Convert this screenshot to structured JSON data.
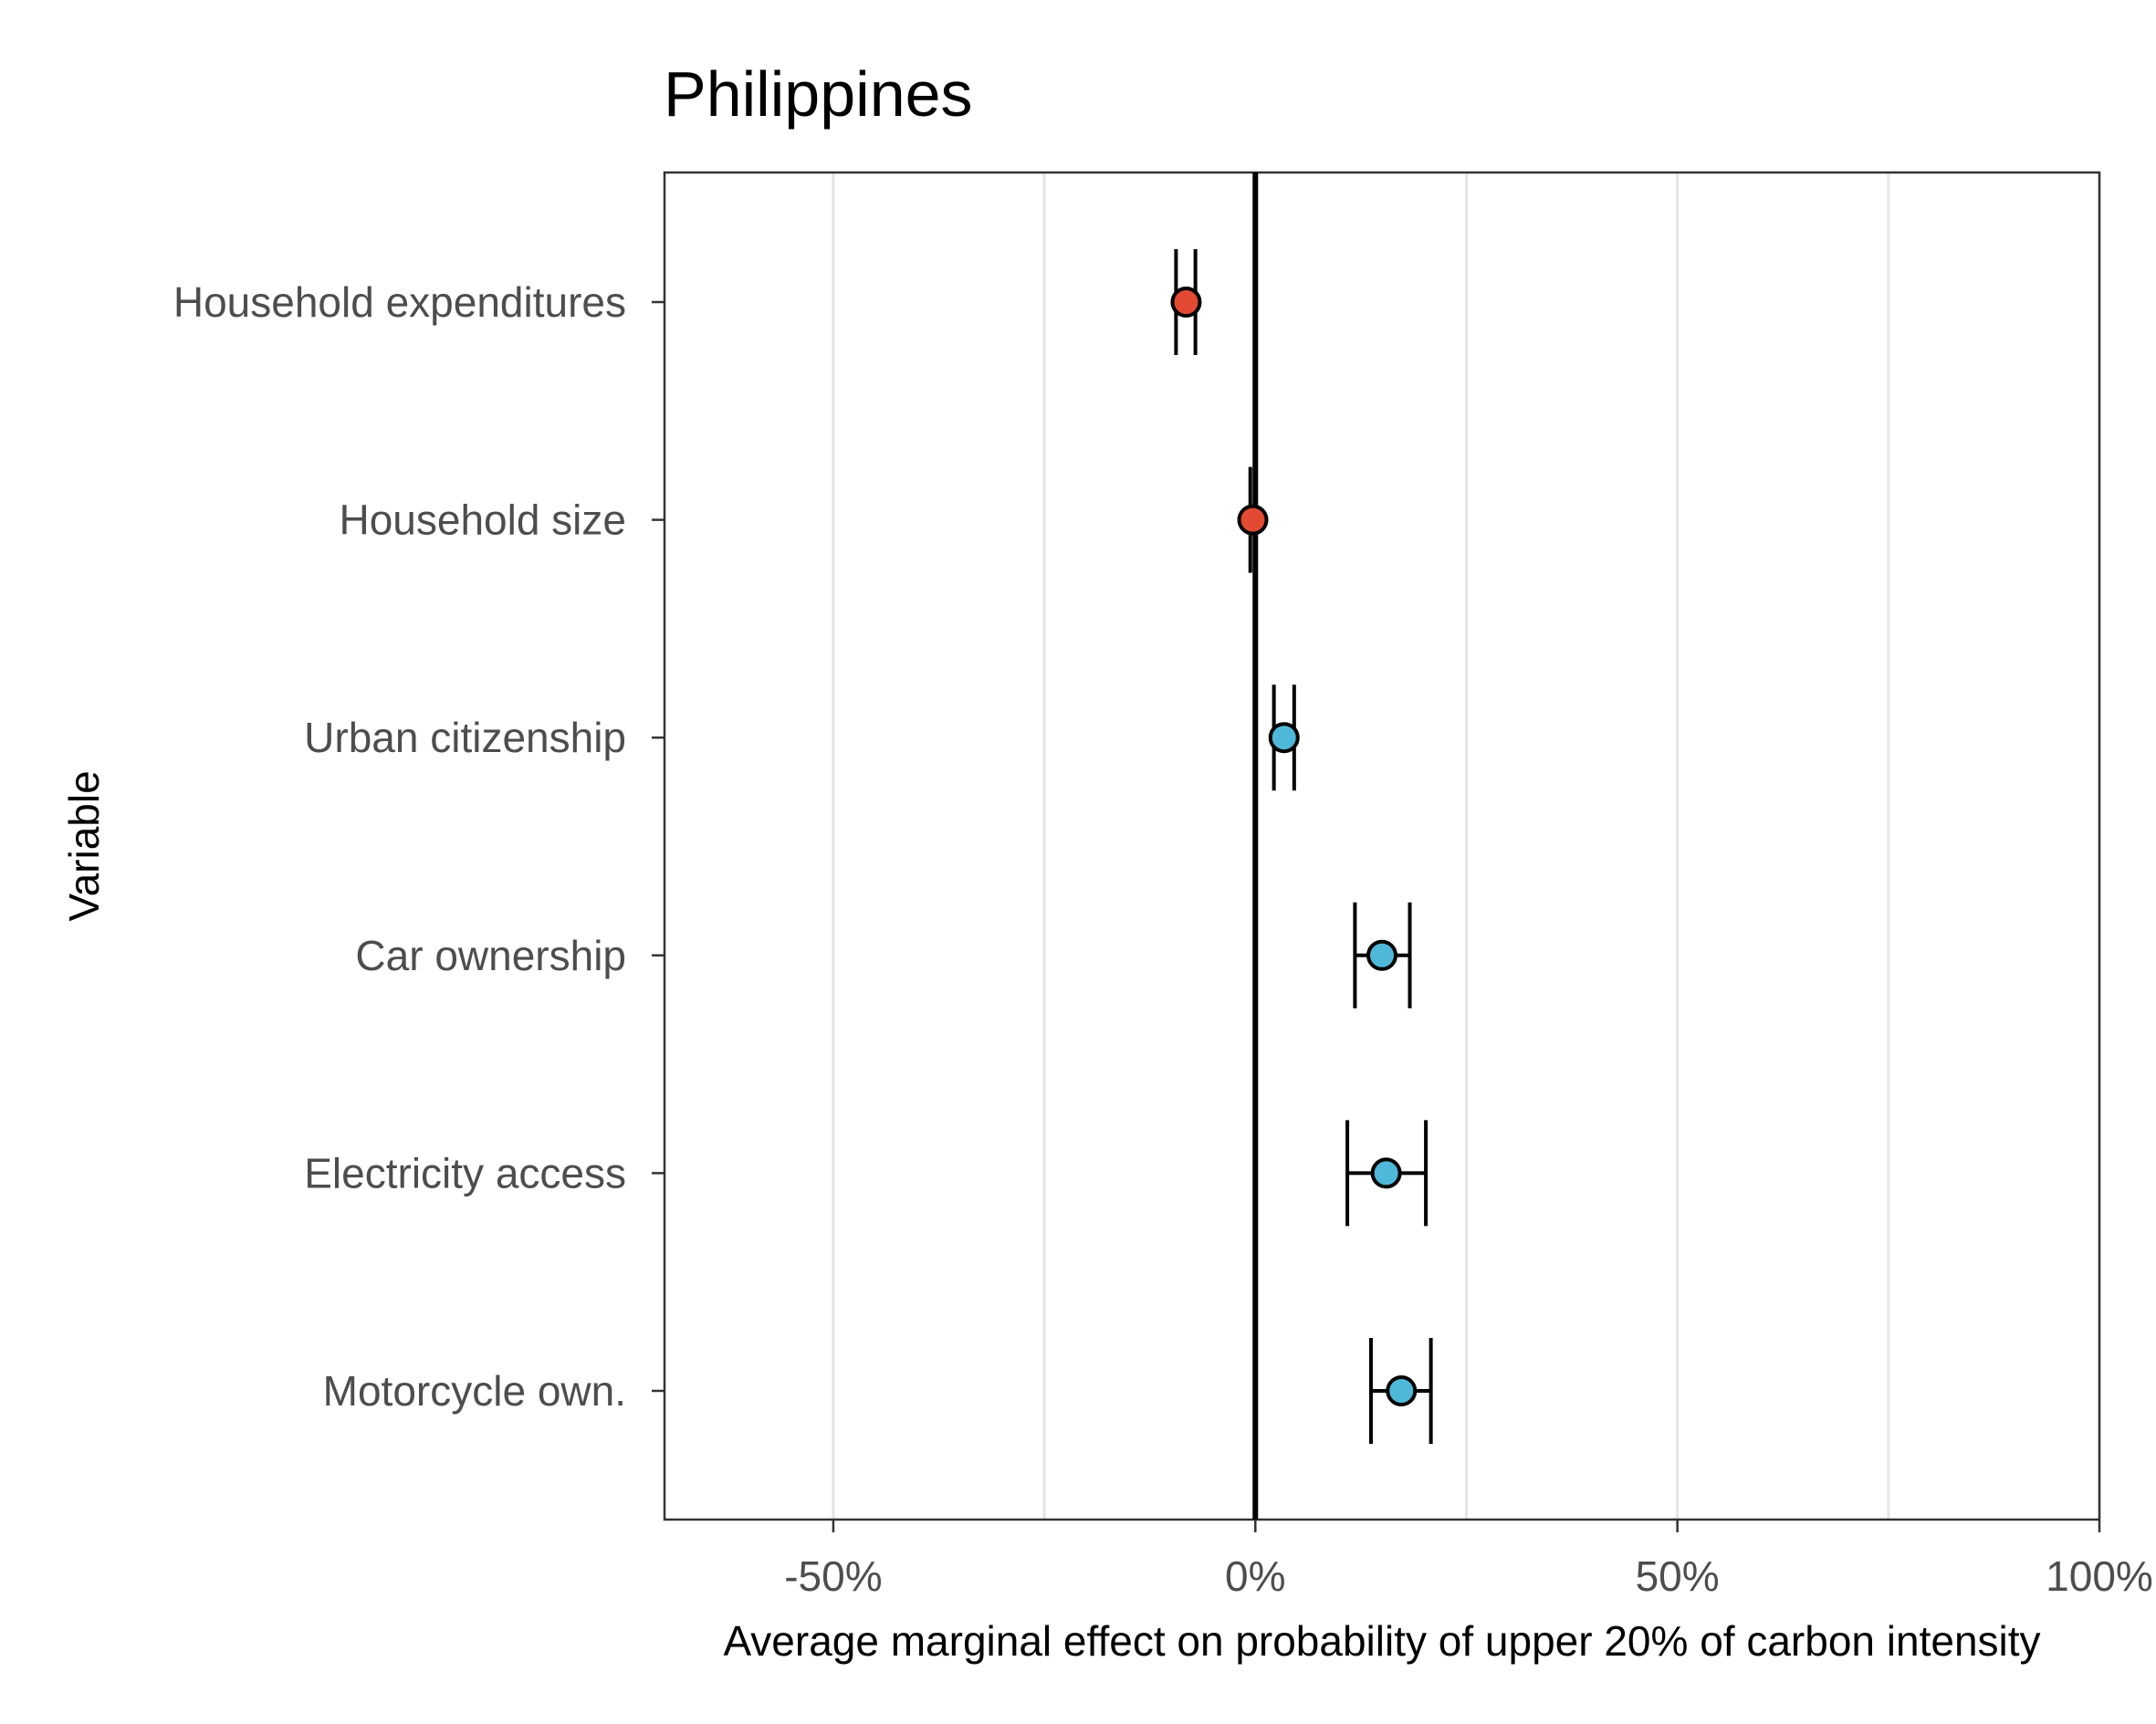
{
  "chart_data": {
    "type": "scatter",
    "subtype": "coefficient-plot-with-error-bars",
    "title": "Philippines",
    "xlabel": "Average marginal effect on probability of upper 20% of carbon intensity",
    "ylabel": "Variable",
    "xlim": [
      -70,
      100
    ],
    "x_ticks": [
      -50,
      0,
      50,
      100
    ],
    "x_tick_labels": [
      "-50%",
      "0%",
      "50%",
      "100%"
    ],
    "minor_gridlines": [
      -25,
      25,
      75
    ],
    "reference_line": 0,
    "grid": "vertical only",
    "legend": "none",
    "categories": [
      "Household expenditures",
      "Household size",
      "Urban citizenship",
      "Car ownership",
      "Electricity access",
      "Motorcycle own."
    ],
    "estimates": [
      {
        "variable": "Household expenditures",
        "value": -8.2,
        "ci_low": -9.4,
        "ci_high": -7.1,
        "color": "#e24a33"
      },
      {
        "variable": "Household size",
        "value": -0.3,
        "ci_low": -0.6,
        "ci_high": -0.1,
        "color": "#e24a33"
      },
      {
        "variable": "Urban citizenship",
        "value": 3.4,
        "ci_low": 2.2,
        "ci_high": 4.6,
        "color": "#4fb8d8"
      },
      {
        "variable": "Car ownership",
        "value": 15.0,
        "ci_low": 11.8,
        "ci_high": 18.3,
        "color": "#4fb8d8"
      },
      {
        "variable": "Electricity access",
        "value": 15.5,
        "ci_low": 10.9,
        "ci_high": 20.2,
        "color": "#4fb8d8"
      },
      {
        "variable": "Motorcycle own.",
        "value": 17.3,
        "ci_low": 13.7,
        "ci_high": 20.8,
        "color": "#4fb8d8"
      }
    ],
    "colors": {
      "negative": "#e24a33",
      "positive": "#4fb8d8",
      "gridline": "#e5e5e5",
      "reference": "#000000"
    }
  }
}
